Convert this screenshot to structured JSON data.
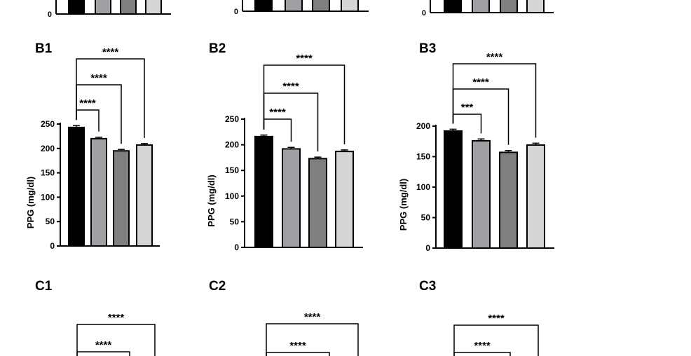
{
  "chart_data": [
    {
      "type": "bar",
      "panel": "B1",
      "ylabel": "PPG (mg/dl)",
      "ylim": [
        0,
        250
      ],
      "yticks": [
        0,
        50,
        100,
        150,
        200,
        250
      ],
      "values": [
        243,
        220,
        195,
        207
      ],
      "errors": [
        4,
        3,
        3,
        3
      ],
      "colors": [
        "#000000",
        "#a0a0a4",
        "#7f7f7f",
        "#d6d6d6"
      ],
      "significance": [
        {
          "from": 0,
          "to": 1,
          "label": "****"
        },
        {
          "from": 0,
          "to": 2,
          "label": "****"
        },
        {
          "from": 0,
          "to": 3,
          "label": "****"
        }
      ]
    },
    {
      "type": "bar",
      "panel": "B2",
      "ylabel": "PPG (mg/dl)",
      "ylim": [
        0,
        250
      ],
      "yticks": [
        0,
        50,
        100,
        150,
        200,
        250
      ],
      "values": [
        216,
        192,
        173,
        187
      ],
      "errors": [
        3,
        3,
        3,
        3
      ],
      "colors": [
        "#000000",
        "#a0a0a4",
        "#7f7f7f",
        "#d6d6d6"
      ],
      "significance": [
        {
          "from": 0,
          "to": 1,
          "label": "****"
        },
        {
          "from": 0,
          "to": 2,
          "label": "****"
        },
        {
          "from": 0,
          "to": 3,
          "label": "****"
        }
      ]
    },
    {
      "type": "bar",
      "panel": "B3",
      "ylabel": "PPG (mg/dl)",
      "ylim": [
        0,
        200
      ],
      "yticks": [
        0,
        50,
        100,
        150,
        200
      ],
      "values": [
        192,
        176,
        157,
        169
      ],
      "errors": [
        3,
        3,
        3,
        3
      ],
      "colors": [
        "#000000",
        "#a0a0a4",
        "#7f7f7f",
        "#d6d6d6"
      ],
      "significance": [
        {
          "from": 0,
          "to": 1,
          "label": "***"
        },
        {
          "from": 0,
          "to": 2,
          "label": "****"
        },
        {
          "from": 0,
          "to": 3,
          "label": "****"
        }
      ]
    }
  ],
  "partial_top_tick": "0",
  "panel_c": [
    {
      "panel": "C1",
      "significance": [
        "****",
        "****"
      ]
    },
    {
      "panel": "C2",
      "significance": [
        "****",
        "****"
      ]
    },
    {
      "panel": "C3",
      "significance": [
        "****",
        "****"
      ]
    }
  ]
}
